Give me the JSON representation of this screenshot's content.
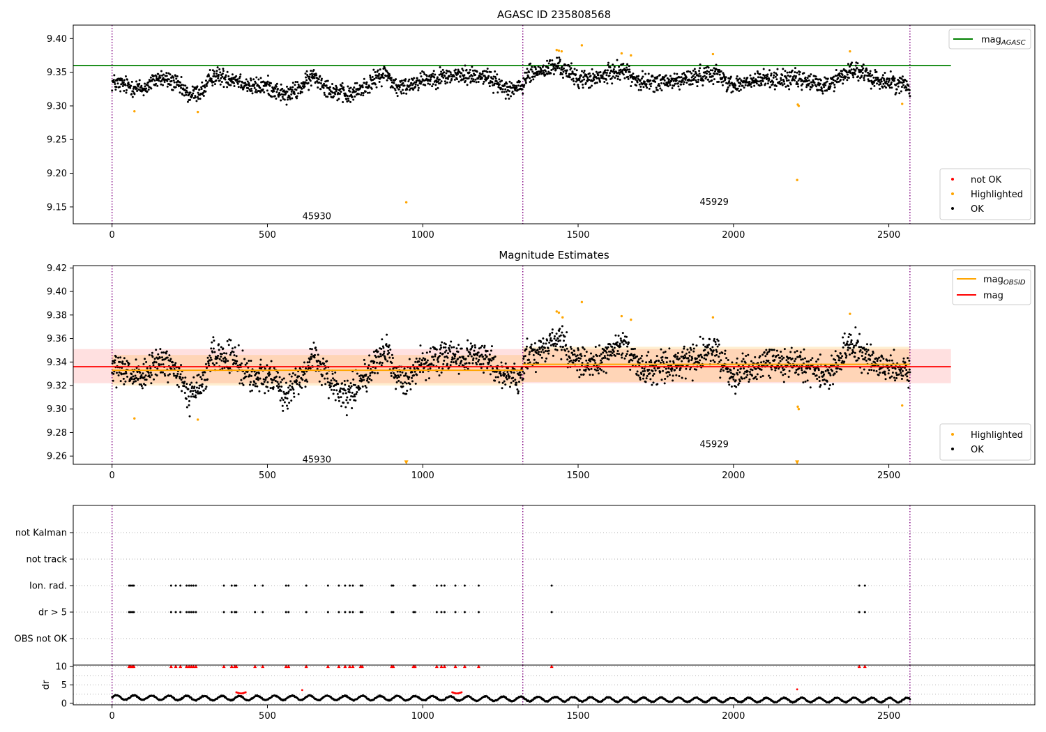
{
  "chart_data": [
    {
      "type": "scatter",
      "title": "AGASC ID 235808568",
      "ylim": [
        9.125,
        9.42
      ],
      "xlim": [
        -125,
        2970
      ],
      "x_ticks": [
        0,
        500,
        1000,
        1500,
        2000,
        2500
      ],
      "y_ticks": [
        9.15,
        9.2,
        9.25,
        9.3,
        9.35,
        9.4
      ],
      "y_tick_labels": [
        "9.15",
        "9.20",
        "9.25",
        "9.30",
        "9.35",
        "9.40"
      ],
      "obsid_boundaries": [
        0,
        1322,
        2568
      ],
      "obsid_labels": [
        {
          "text": "45930",
          "x": 659,
          "y": 9.136
        },
        {
          "text": "45929",
          "x": 1938,
          "y": 9.157
        }
      ],
      "reference_line": {
        "label": "mag",
        "label_sub": "AGASC",
        "y": 9.36,
        "x": [
          -125,
          2700
        ],
        "color": "#008000"
      },
      "legend_lines_position": "top-right",
      "legend_points_position": "bottom-right",
      "legend_points": [
        {
          "label": "not OK",
          "color": "#ff0000"
        },
        {
          "label": "Highlighted",
          "color": "#ffa500"
        },
        {
          "label": "OK",
          "color": "#000000"
        }
      ],
      "highlighted_points": [
        {
          "x": 72,
          "y": 9.292
        },
        {
          "x": 276,
          "y": 9.291
        },
        {
          "x": 947,
          "y": 9.157
        },
        {
          "x": 1431,
          "y": 9.383
        },
        {
          "x": 1438,
          "y": 9.382
        },
        {
          "x": 1447,
          "y": 9.381
        },
        {
          "x": 1512,
          "y": 9.39
        },
        {
          "x": 1640,
          "y": 9.378
        },
        {
          "x": 1670,
          "y": 9.375
        },
        {
          "x": 1934,
          "y": 9.377
        },
        {
          "x": 2207,
          "y": 9.302
        },
        {
          "x": 2210,
          "y": 9.3
        },
        {
          "x": 2205,
          "y": 9.19
        },
        {
          "x": 2375,
          "y": 9.381
        },
        {
          "x": 2543,
          "y": 9.303
        }
      ],
      "ok_trend": [
        {
          "x": 0,
          "y": 9.335
        },
        {
          "x": 100,
          "y": 9.325
        },
        {
          "x": 150,
          "y": 9.342
        },
        {
          "x": 200,
          "y": 9.335
        },
        {
          "x": 250,
          "y": 9.315
        },
        {
          "x": 300,
          "y": 9.325
        },
        {
          "x": 320,
          "y": 9.345
        },
        {
          "x": 400,
          "y": 9.34
        },
        {
          "x": 450,
          "y": 9.328
        },
        {
          "x": 500,
          "y": 9.33
        },
        {
          "x": 560,
          "y": 9.315
        },
        {
          "x": 600,
          "y": 9.325
        },
        {
          "x": 650,
          "y": 9.345
        },
        {
          "x": 700,
          "y": 9.325
        },
        {
          "x": 760,
          "y": 9.315
        },
        {
          "x": 820,
          "y": 9.33
        },
        {
          "x": 880,
          "y": 9.35
        },
        {
          "x": 920,
          "y": 9.325
        },
        {
          "x": 1000,
          "y": 9.34
        },
        {
          "x": 1100,
          "y": 9.345
        },
        {
          "x": 1200,
          "y": 9.345
        },
        {
          "x": 1260,
          "y": 9.328
        },
        {
          "x": 1320,
          "y": 9.325
        },
        {
          "x": 1330,
          "y": 9.345
        },
        {
          "x": 1440,
          "y": 9.36
        },
        {
          "x": 1500,
          "y": 9.34
        },
        {
          "x": 1560,
          "y": 9.34
        },
        {
          "x": 1640,
          "y": 9.355
        },
        {
          "x": 1700,
          "y": 9.335
        },
        {
          "x": 1800,
          "y": 9.335
        },
        {
          "x": 1940,
          "y": 9.35
        },
        {
          "x": 2000,
          "y": 9.33
        },
        {
          "x": 2100,
          "y": 9.34
        },
        {
          "x": 2200,
          "y": 9.34
        },
        {
          "x": 2300,
          "y": 9.33
        },
        {
          "x": 2380,
          "y": 9.355
        },
        {
          "x": 2450,
          "y": 9.34
        },
        {
          "x": 2568,
          "y": 9.33
        }
      ],
      "ok_scatter_half_range": 0.02
    },
    {
      "type": "scatter",
      "title": "Magnitude Estimates",
      "ylim": [
        9.253,
        9.422
      ],
      "xlim": [
        -125,
        2970
      ],
      "x_ticks": [
        0,
        500,
        1000,
        1500,
        2000,
        2500
      ],
      "y_ticks": [
        9.26,
        9.28,
        9.3,
        9.32,
        9.34,
        9.36,
        9.38,
        9.4,
        9.42
      ],
      "y_tick_labels": [
        "9.26",
        "9.28",
        "9.30",
        "9.32",
        "9.34",
        "9.36",
        "9.38",
        "9.40",
        "9.42"
      ],
      "obsid_boundaries": [
        0,
        1322,
        2568
      ],
      "obsid_labels": [
        {
          "text": "45930",
          "x": 659,
          "y": 9.257
        },
        {
          "text": "45929",
          "x": 1938,
          "y": 9.27
        }
      ],
      "mag_line": {
        "label": "mag",
        "y": 9.336,
        "x": [
          -125,
          2700
        ],
        "band": [
          9.322,
          9.351
        ],
        "color": "#ff0000"
      },
      "obsid_mag_segments": [
        {
          "x": [
            0,
            1322
          ],
          "y": 9.333,
          "band": [
            9.32,
            9.346
          ]
        },
        {
          "x": [
            1322,
            2568
          ],
          "y": 9.338,
          "band": [
            9.323,
            9.353
          ]
        }
      ],
      "obsid_mag_label": "mag",
      "obsid_mag_label_sub": "OBSID",
      "obsid_mag_color": "#ffa500",
      "legend_lines_position": "top-right",
      "legend_points_position": "bottom-right",
      "legend_points": [
        {
          "label": "Highlighted",
          "color": "#ffa500"
        },
        {
          "label": "OK",
          "color": "#000000"
        }
      ],
      "highlighted_points": [
        {
          "x": 72,
          "y": 9.292
        },
        {
          "x": 276,
          "y": 9.291
        },
        {
          "x": 1431,
          "y": 9.383
        },
        {
          "x": 1438,
          "y": 9.382
        },
        {
          "x": 1450,
          "y": 9.378
        },
        {
          "x": 1512,
          "y": 9.391
        },
        {
          "x": 1640,
          "y": 9.379
        },
        {
          "x": 1670,
          "y": 9.376
        },
        {
          "x": 1934,
          "y": 9.378
        },
        {
          "x": 2207,
          "y": 9.302
        },
        {
          "x": 2210,
          "y": 9.3
        },
        {
          "x": 2375,
          "y": 9.381
        },
        {
          "x": 2543,
          "y": 9.303
        }
      ],
      "clipped_points": [
        {
          "x": 947,
          "y": 9.254
        },
        {
          "x": 2205,
          "y": 9.254
        }
      ],
      "ok_trend": [
        {
          "x": 0,
          "y": 9.335
        },
        {
          "x": 100,
          "y": 9.325
        },
        {
          "x": 150,
          "y": 9.342
        },
        {
          "x": 200,
          "y": 9.335
        },
        {
          "x": 250,
          "y": 9.31
        },
        {
          "x": 300,
          "y": 9.325
        },
        {
          "x": 320,
          "y": 9.348
        },
        {
          "x": 400,
          "y": 9.34
        },
        {
          "x": 450,
          "y": 9.326
        },
        {
          "x": 500,
          "y": 9.33
        },
        {
          "x": 560,
          "y": 9.312
        },
        {
          "x": 600,
          "y": 9.325
        },
        {
          "x": 650,
          "y": 9.345
        },
        {
          "x": 700,
          "y": 9.322
        },
        {
          "x": 760,
          "y": 9.312
        },
        {
          "x": 820,
          "y": 9.33
        },
        {
          "x": 880,
          "y": 9.352
        },
        {
          "x": 920,
          "y": 9.322
        },
        {
          "x": 1000,
          "y": 9.34
        },
        {
          "x": 1100,
          "y": 9.345
        },
        {
          "x": 1200,
          "y": 9.345
        },
        {
          "x": 1260,
          "y": 9.328
        },
        {
          "x": 1320,
          "y": 9.322
        },
        {
          "x": 1330,
          "y": 9.345
        },
        {
          "x": 1440,
          "y": 9.36
        },
        {
          "x": 1500,
          "y": 9.34
        },
        {
          "x": 1560,
          "y": 9.34
        },
        {
          "x": 1640,
          "y": 9.355
        },
        {
          "x": 1700,
          "y": 9.335
        },
        {
          "x": 1800,
          "y": 9.335
        },
        {
          "x": 1940,
          "y": 9.35
        },
        {
          "x": 2000,
          "y": 9.328
        },
        {
          "x": 2100,
          "y": 9.34
        },
        {
          "x": 2200,
          "y": 9.34
        },
        {
          "x": 2300,
          "y": 9.328
        },
        {
          "x": 2380,
          "y": 9.355
        },
        {
          "x": 2450,
          "y": 9.34
        },
        {
          "x": 2568,
          "y": 9.33
        }
      ],
      "ok_scatter_half_range": 0.02
    },
    {
      "type": "scatter",
      "title": "",
      "xlim": [
        -125,
        2970
      ],
      "flag_categories": [
        "not Kalman",
        "not track",
        "Ion. rad.",
        "dr > 5",
        "OBS not OK"
      ],
      "obsid_boundaries": [
        0,
        1322,
        2568
      ],
      "flag_times": {
        "Ion. rad.": [
          55,
          60,
          65,
          70,
          190,
          205,
          220,
          240,
          248,
          255,
          262,
          270,
          360,
          385,
          395,
          400,
          460,
          485,
          560,
          568,
          625,
          695,
          730,
          750,
          765,
          775,
          800,
          805,
          900,
          905,
          970,
          975,
          1045,
          1060,
          1070,
          1105,
          1135,
          1180,
          1415,
          2405,
          2423
        ],
        "dr > 5": [
          55,
          60,
          65,
          70,
          190,
          205,
          220,
          240,
          248,
          255,
          262,
          270,
          360,
          385,
          395,
          400,
          460,
          485,
          560,
          568,
          625,
          695,
          730,
          750,
          765,
          775,
          800,
          805,
          900,
          905,
          970,
          975,
          1045,
          1060,
          1070,
          1105,
          1135,
          1180,
          1415,
          2405,
          2423
        ]
      }
    },
    {
      "type": "scatter",
      "title": "",
      "ylabel": "dr",
      "ylim": [
        -0.4,
        10.4
      ],
      "xlim": [
        -125,
        2970
      ],
      "x_ticks": [
        0,
        500,
        1000,
        1500,
        2000,
        2500
      ],
      "y_ticks": [
        0,
        5,
        10
      ],
      "obsid_boundaries": [
        0,
        1322,
        2568
      ],
      "dr_over_limit_times": [
        55,
        60,
        65,
        70,
        190,
        205,
        220,
        240,
        248,
        255,
        262,
        270,
        360,
        385,
        395,
        400,
        460,
        485,
        560,
        568,
        625,
        695,
        730,
        750,
        765,
        775,
        800,
        805,
        900,
        905,
        970,
        975,
        1045,
        1060,
        1070,
        1105,
        1135,
        1180,
        1415,
        2405,
        2423
      ],
      "dr_clip_value": 10,
      "red_arcs": [
        {
          "x": [
            400,
            430
          ],
          "y": 3.0
        },
        {
          "x": [
            1095,
            1125
          ],
          "y": 3.0
        }
      ],
      "red_points": [
        {
          "x": 612,
          "y": 3.6
        },
        {
          "x": 2205,
          "y": 3.8
        }
      ],
      "dr_trend": [
        {
          "x": 0,
          "y": 1.6
        },
        {
          "x": 300,
          "y": 1.4
        },
        {
          "x": 600,
          "y": 1.5
        },
        {
          "x": 1000,
          "y": 1.4
        },
        {
          "x": 1322,
          "y": 1.2
        },
        {
          "x": 1700,
          "y": 1.0
        },
        {
          "x": 2100,
          "y": 0.9
        },
        {
          "x": 2568,
          "y": 0.9
        }
      ]
    }
  ]
}
